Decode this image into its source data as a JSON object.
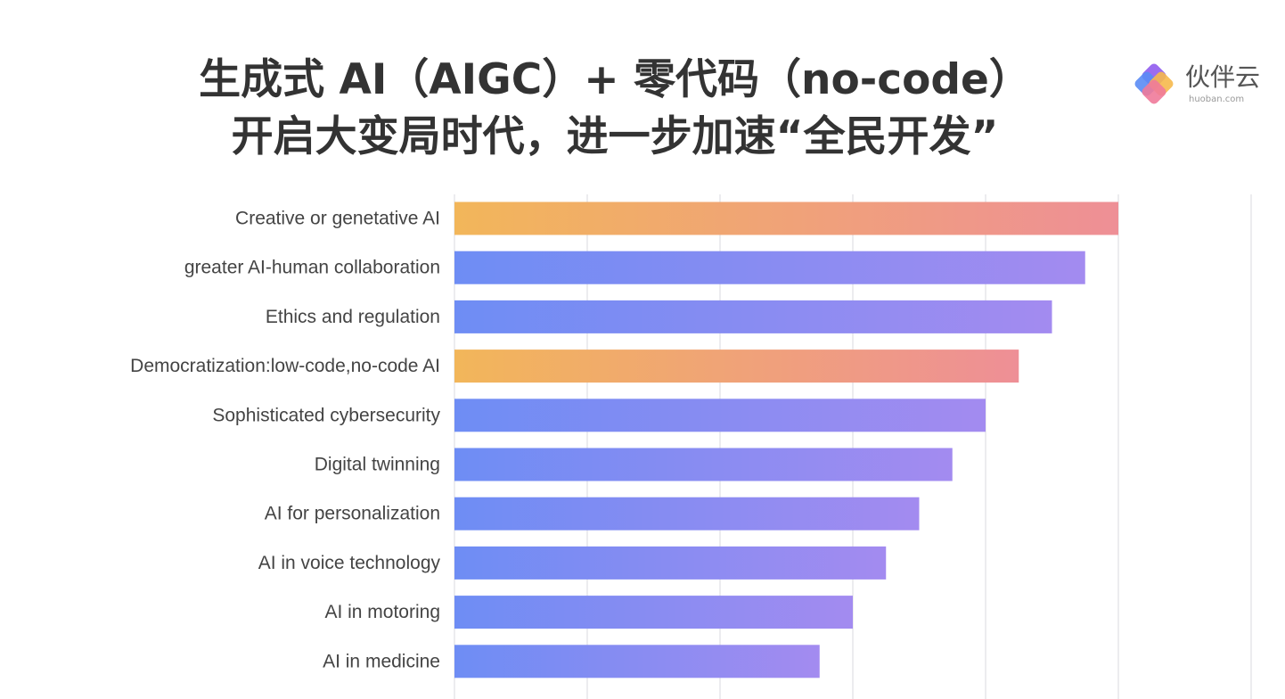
{
  "title": {
    "line1": "生成式 AI（AIGC）+ 零代码（no-code）",
    "line2": "开启大变局时代，进一步加速“全民开发”"
  },
  "logo": {
    "name": "伙伴云",
    "domain": "huoban.com",
    "icon": "huoban-logo-icon"
  },
  "colors": {
    "highlight_start": "#F2B65A",
    "highlight_end": "#EE8F96",
    "standard_start": "#6E8DF4",
    "standard_end": "#A38BF0",
    "grid": "#E6E6EA",
    "label": "#444444"
  },
  "chart_data": {
    "type": "bar",
    "orientation": "horizontal",
    "categories": [
      "Creative or genetative AI",
      "greater AI-human collaboration",
      "Ethics and regulation",
      "Democratization:low-code,no-code AI",
      "Sophisticated cybersecurity",
      "Digital twinning",
      "AI for personalization",
      "AI in voice technology",
      "AI in motoring",
      "AI in medicine"
    ],
    "values": [
      10,
      9.5,
      9,
      8.5,
      8,
      7.5,
      7,
      6.5,
      6,
      5.5
    ],
    "highlighted": [
      true,
      false,
      false,
      true,
      false,
      false,
      false,
      false,
      false,
      false
    ],
    "xlim": [
      0,
      12
    ],
    "grid": true,
    "tick_labels_shown": false,
    "title": "",
    "xlabel": "",
    "ylabel": ""
  }
}
